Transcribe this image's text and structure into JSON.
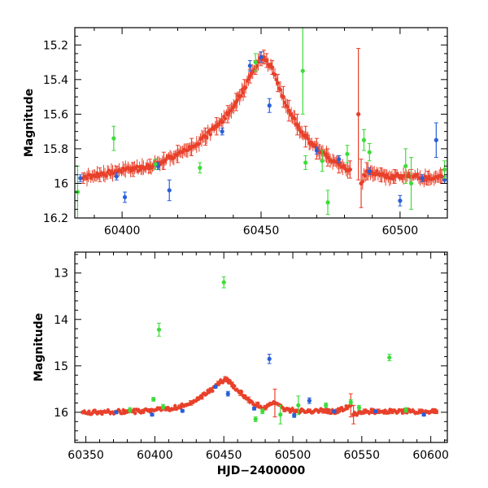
{
  "chart_data": [
    {
      "type": "scatter",
      "title": "",
      "xlabel": "",
      "ylabel": "Magnitude",
      "xlim": [
        60383,
        60517
      ],
      "ylim": [
        16.2,
        15.1
      ],
      "y_inverted": true,
      "x_ticks": [
        60400,
        60450,
        60500
      ],
      "y_ticks": [
        15.2,
        15.4,
        15.6,
        15.8,
        16,
        16.2
      ],
      "grid": false,
      "legend": "none",
      "peak": {
        "x": 60451,
        "y": 15.27
      },
      "series": [
        {
          "color": "#e8402a",
          "points": [
            [
              60386,
              15.97,
              0.03
            ],
            [
              60392,
              15.95,
              0.04
            ],
            [
              60398,
              15.93,
              0.03
            ],
            [
              60404,
              15.92,
              0.04
            ],
            [
              60410,
              15.9,
              0.04
            ],
            [
              60415,
              15.87,
              0.05
            ],
            [
              60420,
              15.83,
              0.05
            ],
            [
              60425,
              15.79,
              0.05
            ],
            [
              60430,
              15.73,
              0.05
            ],
            [
              60434,
              15.67,
              0.05
            ],
            [
              60438,
              15.6,
              0.05
            ],
            [
              60441,
              15.53,
              0.05
            ],
            [
              60444,
              15.45,
              0.05
            ],
            [
              60446,
              15.38,
              0.04
            ],
            [
              60448,
              15.33,
              0.04
            ],
            [
              60450,
              15.28,
              0.04
            ],
            [
              60451,
              15.27,
              0.04
            ],
            [
              60452,
              15.29,
              0.04
            ],
            [
              60454,
              15.33,
              0.04
            ],
            [
              60456,
              15.42,
              0.05
            ],
            [
              60458,
              15.5,
              0.06
            ],
            [
              60460,
              15.58,
              0.06
            ],
            [
              60463,
              15.66,
              0.06
            ],
            [
              60466,
              15.73,
              0.06
            ],
            [
              60470,
              15.8,
              0.06
            ],
            [
              60474,
              15.85,
              0.05
            ],
            [
              60478,
              15.89,
              0.05
            ],
            [
              60482,
              15.92,
              0.05
            ],
            [
              60485,
              15.6,
              0.38
            ],
            [
              60486,
              16.0,
              0.14
            ],
            [
              60488,
              15.93,
              0.05
            ],
            [
              60493,
              15.95,
              0.04
            ],
            [
              60498,
              15.96,
              0.04
            ],
            [
              60504,
              15.96,
              0.04
            ],
            [
              60510,
              15.97,
              0.04
            ],
            [
              60515,
              15.96,
              0.04
            ]
          ]
        },
        {
          "color": "#2a5fd8",
          "points": [
            [
              60385,
              15.97,
              0.02
            ],
            [
              60398,
              15.96,
              0.02
            ],
            [
              60401,
              16.08,
              0.03
            ],
            [
              60413,
              15.9,
              0.02
            ],
            [
              60417,
              16.04,
              0.06
            ],
            [
              60436,
              15.7,
              0.02
            ],
            [
              60446,
              15.32,
              0.03
            ],
            [
              60450,
              15.27,
              0.03
            ],
            [
              60453,
              15.55,
              0.04
            ],
            [
              60470,
              15.81,
              0.02
            ],
            [
              60478,
              15.86,
              0.02
            ],
            [
              60489,
              15.93,
              0.02
            ],
            [
              60500,
              16.1,
              0.03
            ],
            [
              60508,
              15.97,
              0.02
            ],
            [
              60513,
              15.75,
              0.1
            ],
            [
              60516,
              15.98,
              0.02
            ]
          ]
        },
        {
          "color": "#3ddc3a",
          "points": [
            [
              60384,
              16.05,
              0.15
            ],
            [
              60397,
              15.74,
              0.07
            ],
            [
              60412,
              15.89,
              0.03
            ],
            [
              60428,
              15.91,
              0.03
            ],
            [
              60448,
              15.3,
              0.05
            ],
            [
              60465,
              15.35,
              0.25
            ],
            [
              60466,
              15.88,
              0.04
            ],
            [
              60472,
              15.87,
              0.06
            ],
            [
              60474,
              16.11,
              0.07
            ],
            [
              60481,
              15.83,
              0.05
            ],
            [
              60487,
              15.75,
              0.06
            ],
            [
              60489,
              15.82,
              0.05
            ],
            [
              60502,
              15.9,
              0.1
            ],
            [
              60504,
              16.0,
              0.15
            ],
            [
              60516,
              15.92,
              0.05
            ]
          ]
        }
      ]
    },
    {
      "type": "scatter",
      "title": "",
      "xlabel": "HJD−2400000",
      "ylabel": "Magnitude",
      "xlim": [
        60342,
        60612
      ],
      "ylim": [
        16.65,
        12.55
      ],
      "y_inverted": true,
      "x_ticks": [
        60350,
        60400,
        60450,
        60500,
        60550,
        60600
      ],
      "y_ticks": [
        13,
        14,
        15,
        16
      ],
      "grid": false,
      "legend": "none",
      "peak": {
        "x": 60451,
        "y": 15.28
      },
      "series": [
        {
          "color": "#e8402a",
          "points": [
            [
              60348,
              16.0,
              0.03
            ],
            [
              60360,
              16.0,
              0.03
            ],
            [
              60372,
              15.99,
              0.03
            ],
            [
              60384,
              15.98,
              0.03
            ],
            [
              60396,
              15.96,
              0.04
            ],
            [
              60408,
              15.93,
              0.04
            ],
            [
              60418,
              15.88,
              0.04
            ],
            [
              60426,
              15.8,
              0.05
            ],
            [
              60434,
              15.67,
              0.05
            ],
            [
              60441,
              15.52,
              0.05
            ],
            [
              60446,
              15.38,
              0.05
            ],
            [
              60451,
              15.28,
              0.05
            ],
            [
              60456,
              15.4,
              0.05
            ],
            [
              60462,
              15.58,
              0.06
            ],
            [
              60468,
              15.73,
              0.06
            ],
            [
              60474,
              15.84,
              0.06
            ],
            [
              60480,
              15.9,
              0.05
            ],
            [
              60487,
              15.8,
              0.3
            ],
            [
              60494,
              15.95,
              0.04
            ],
            [
              60503,
              15.97,
              0.04
            ],
            [
              60512,
              15.97,
              0.04
            ],
            [
              60522,
              15.97,
              0.05
            ],
            [
              60532,
              15.98,
              0.05
            ],
            [
              60542,
              15.85,
              0.25
            ],
            [
              60544,
              16.05,
              0.2
            ],
            [
              60552,
              15.98,
              0.05
            ],
            [
              60562,
              15.98,
              0.05
            ],
            [
              60572,
              15.98,
              0.05
            ],
            [
              60582,
              15.98,
              0.05
            ],
            [
              60592,
              15.98,
              0.05
            ],
            [
              60604,
              15.99,
              0.04
            ]
          ]
        },
        {
          "color": "#2a5fd8",
          "points": [
            [
              60372,
              16.0,
              0.03
            ],
            [
              60398,
              16.05,
              0.03
            ],
            [
              60420,
              15.97,
              0.03
            ],
            [
              60444,
              15.45,
              0.03
            ],
            [
              60453,
              15.6,
              0.05
            ],
            [
              60472,
              15.92,
              0.03
            ],
            [
              60483,
              14.85,
              0.1
            ],
            [
              60501,
              16.07,
              0.04
            ],
            [
              60512,
              15.75,
              0.06
            ],
            [
              60530,
              15.98,
              0.03
            ],
            [
              60560,
              15.98,
              0.03
            ],
            [
              60595,
              16.05,
              0.03
            ]
          ]
        },
        {
          "color": "#3ddc3a",
          "points": [
            [
              60382,
              15.95,
              0.05
            ],
            [
              60399,
              15.72,
              0.04
            ],
            [
              60403,
              14.22,
              0.14
            ],
            [
              60406,
              15.88,
              0.05
            ],
            [
              60450,
              13.2,
              0.12
            ],
            [
              60473,
              16.15,
              0.05
            ],
            [
              60478,
              15.98,
              0.05
            ],
            [
              60491,
              16.05,
              0.2
            ],
            [
              60504,
              15.85,
              0.2
            ],
            [
              60524,
              15.85,
              0.05
            ],
            [
              60542,
              15.78,
              0.05
            ],
            [
              60548,
              15.9,
              0.05
            ],
            [
              60570,
              14.82,
              0.07
            ],
            [
              60582,
              15.95,
              0.05
            ]
          ]
        }
      ]
    }
  ]
}
